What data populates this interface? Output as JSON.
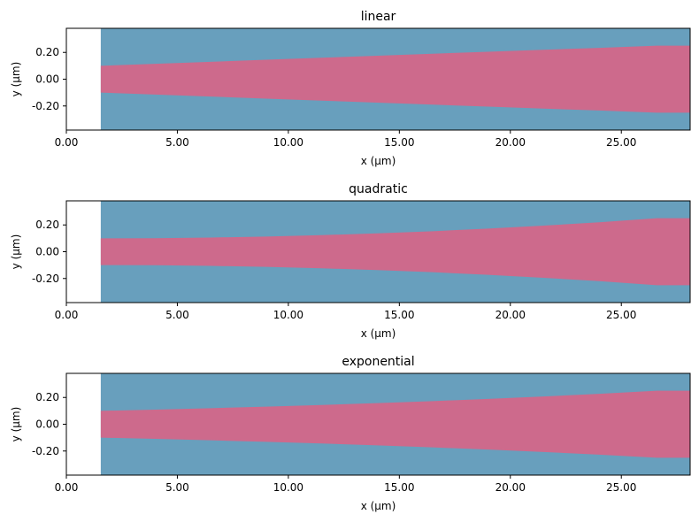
{
  "chart_data": [
    {
      "type": "area",
      "title": "linear",
      "xlabel": "x (µm)",
      "ylabel": "y (µm)",
      "xlim": [
        0,
        28.1
      ],
      "ylim": [
        -0.38,
        0.38
      ],
      "xticks": [
        "0.00",
        "5.00",
        "10.00",
        "15.00",
        "20.00",
        "25.00"
      ],
      "yticks": [
        "0.20",
        "0.00",
        "-0.20"
      ],
      "background": {
        "x": [
          1.55,
          28.1
        ],
        "y": [
          -0.38,
          0.38
        ],
        "color": "#689fbd"
      },
      "series": [
        {
          "x": [
            1.55,
            4,
            6.5,
            9,
            11.5,
            14,
            16.5,
            19,
            21.5,
            24,
            26.6,
            28.1
          ],
          "y_upper": [
            0.1,
            0.115,
            0.13,
            0.145,
            0.16,
            0.175,
            0.19,
            0.205,
            0.22,
            0.234,
            0.25,
            0.25
          ],
          "color": "#cd6a8c",
          "symmetric": true
        }
      ]
    },
    {
      "type": "area",
      "title": "quadratic",
      "xlabel": "x (µm)",
      "ylabel": "y (µm)",
      "xlim": [
        0,
        28.1
      ],
      "ylim": [
        -0.38,
        0.38
      ],
      "xticks": [
        "0.00",
        "5.00",
        "10.00",
        "15.00",
        "20.00",
        "25.00"
      ],
      "yticks": [
        "0.20",
        "0.00",
        "-0.20"
      ],
      "background": {
        "x": [
          1.55,
          28.1
        ],
        "y": [
          -0.38,
          0.38
        ],
        "color": "#689fbd"
      },
      "series": [
        {
          "x": [
            1.55,
            4,
            6.5,
            9,
            11.5,
            14,
            16.5,
            19,
            21.5,
            24,
            26.6,
            28.1
          ],
          "y_upper": [
            0.1,
            0.101,
            0.106,
            0.113,
            0.124,
            0.137,
            0.153,
            0.173,
            0.195,
            0.22,
            0.25,
            0.25
          ],
          "color": "#cd6a8c",
          "symmetric": true
        }
      ]
    },
    {
      "type": "area",
      "title": "exponential",
      "xlabel": "x (µm)",
      "ylabel": "y (µm)",
      "xlim": [
        0,
        28.1
      ],
      "ylim": [
        -0.38,
        0.38
      ],
      "xticks": [
        "0.00",
        "5.00",
        "10.00",
        "15.00",
        "20.00",
        "25.00"
      ],
      "yticks": [
        "0.20",
        "0.00",
        "-0.20"
      ],
      "background": {
        "x": [
          1.55,
          28.1
        ],
        "y": [
          -0.38,
          0.38
        ],
        "color": "#689fbd"
      },
      "series": [
        {
          "x": [
            1.55,
            4,
            6.5,
            9,
            11.5,
            14,
            16.5,
            19,
            21.5,
            24,
            26.6,
            28.1
          ],
          "y_upper": [
            0.1,
            0.109,
            0.12,
            0.131,
            0.144,
            0.158,
            0.173,
            0.189,
            0.207,
            0.227,
            0.25,
            0.25
          ],
          "color": "#cd6a8c",
          "symmetric": true
        }
      ]
    }
  ]
}
